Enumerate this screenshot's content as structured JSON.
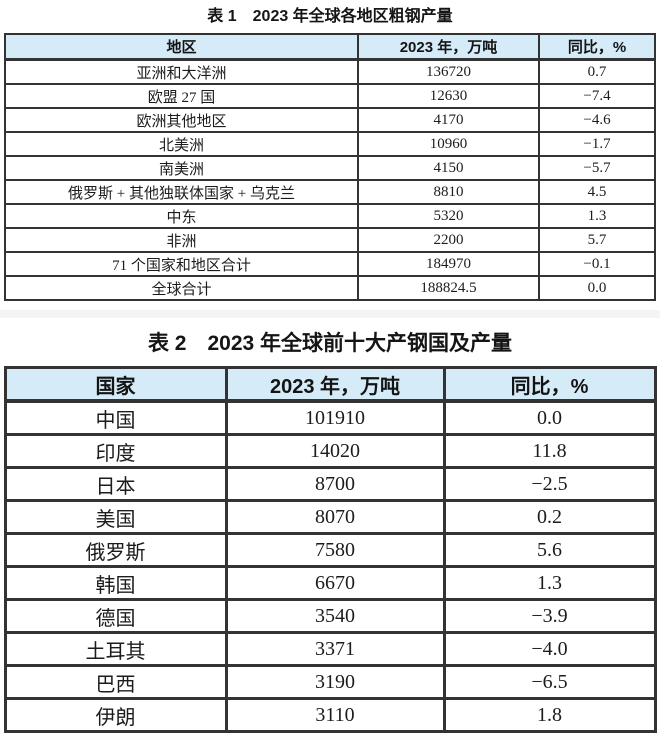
{
  "colors": {
    "header_bg": "#d5ebf8",
    "border": "#333333",
    "text": "#1a1a1a",
    "page_bg": "#ffffff",
    "separator_band": "#f4f4f4"
  },
  "table1": {
    "title": "表 1　2023 年全球各地区粗钢产量",
    "columns": [
      "地区",
      "2023 年，万吨",
      "同比，%"
    ],
    "rows": [
      [
        "亚洲和大洋洲",
        "136720",
        "0.7"
      ],
      [
        "欧盟 27 国",
        "12630",
        "−7.4"
      ],
      [
        "欧洲其他地区",
        "4170",
        "−4.6"
      ],
      [
        "北美洲",
        "10960",
        "−1.7"
      ],
      [
        "南美洲",
        "4150",
        "−5.7"
      ],
      [
        "俄罗斯 + 其他独联体国家 + 乌克兰",
        "8810",
        "4.5"
      ],
      [
        "中东",
        "5320",
        "1.3"
      ],
      [
        "非洲",
        "2200",
        "5.7"
      ],
      [
        "71 个国家和地区合计",
        "184970",
        "−0.1"
      ],
      [
        "全球合计",
        "188824.5",
        "0.0"
      ]
    ]
  },
  "table2": {
    "title": "表 2　2023 年全球前十大产钢国及产量",
    "columns": [
      "国家",
      "2023 年，万吨",
      "同比，%"
    ],
    "rows": [
      [
        "中国",
        "101910",
        "0.0"
      ],
      [
        "印度",
        "14020",
        "11.8"
      ],
      [
        "日本",
        "8700",
        "−2.5"
      ],
      [
        "美国",
        "8070",
        "0.2"
      ],
      [
        "俄罗斯",
        "7580",
        "5.6"
      ],
      [
        "韩国",
        "6670",
        "1.3"
      ],
      [
        "德国",
        "3540",
        "−3.9"
      ],
      [
        "土耳其",
        "3371",
        "−4.0"
      ],
      [
        "巴西",
        "3190",
        "−6.5"
      ],
      [
        "伊朗",
        "3110",
        "1.8"
      ]
    ]
  }
}
